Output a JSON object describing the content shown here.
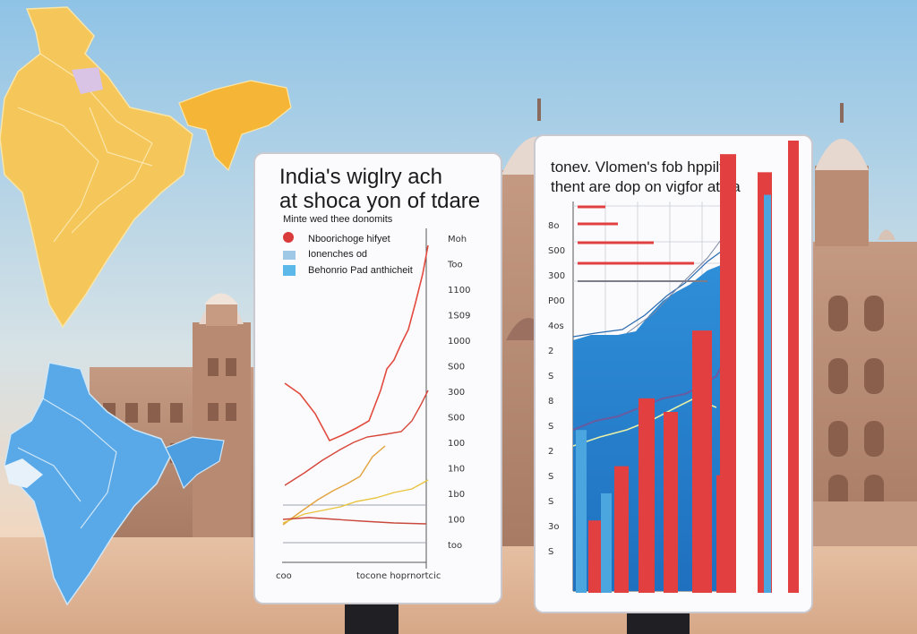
{
  "left_board": {
    "title_line1": "India's wiglry ach",
    "title_line2": "at shoca yon of tdare",
    "subtitle": "Minte wed thee donomits",
    "legend": [
      {
        "label": "Nboorichoge hifyet",
        "color": "#d93a3a"
      },
      {
        "label": "Ionenches od",
        "color": "#9ec8e6"
      },
      {
        "label": "Behonrio Pad anthicheit",
        "color": "#5bb8e8"
      }
    ],
    "axis_labels": [
      "Moh",
      "Too",
      "1100",
      "1S09",
      "1000",
      "S00",
      "300",
      "S00",
      "100",
      "1h0",
      "1b0",
      "100",
      "too"
    ],
    "x_label_left": "coo",
    "x_label_right": "tocone hoprnortcic"
  },
  "right_board": {
    "title_line1": "tonev. Vlomen's fob hppilt,",
    "title_line2": "thent are dop on vigfor atiha",
    "axis_labels": [
      "8o",
      "S00",
      "300",
      "P00",
      "4os",
      "2",
      "S",
      "8",
      "S",
      "2",
      "S",
      "S",
      "3o",
      "S"
    ],
    "bar_values": [
      0.36,
      0.16,
      0.22,
      0.28,
      0.43,
      0.4,
      0.58,
      0.26,
      0.97,
      0.93,
      1.0,
      0.88
    ],
    "colors": {
      "bar_red": "#e24040",
      "bar_blue": "#4ba6e0",
      "area": "#2a86d0"
    }
  }
}
